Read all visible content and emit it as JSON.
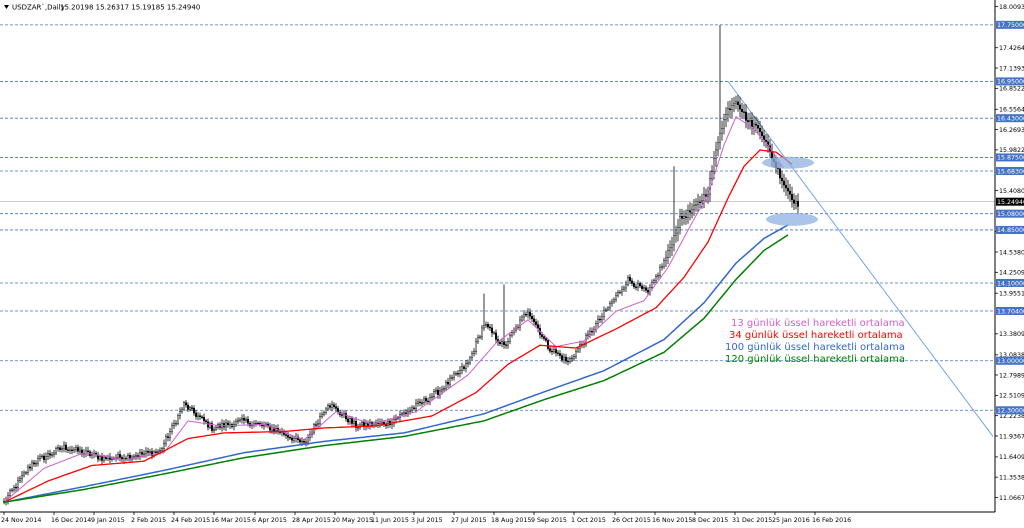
{
  "header": {
    "symbol": "USDZAR`,Daily",
    "ohlc": "15.20198 15.26317 15.19185 15.24940"
  },
  "chart_data": {
    "type": "candlestick",
    "ylim": [
      11.0,
      18.15
    ],
    "yticks": [
      "18.00930",
      "17.42640",
      "17.13930",
      "16.85220",
      "16.55640",
      "16.26930",
      "15.98220",
      "15.40800",
      "14.82510",
      "14.53800",
      "14.25090",
      "13.95510",
      "13.38090",
      "13.08380",
      "12.79890",
      "12.51090",
      "12.22380",
      "11.93670",
      "11.64090",
      "11.35380",
      "11.06670"
    ],
    "yticks_values": [
      18.0093,
      17.4264,
      17.1393,
      16.8522,
      16.5564,
      16.2693,
      15.9822,
      15.408,
      14.8251,
      14.538,
      14.2509,
      13.9551,
      13.3809,
      13.0838,
      12.7989,
      12.5109,
      12.2238,
      11.9367,
      11.6409,
      11.3538,
      11.0667
    ],
    "xticks": [
      "24 Nov 2014",
      "16 Dec 2014",
      "9 Jan 2015",
      "2 Feb 2015",
      "24 Feb 2015",
      "16 Mar 2015",
      "6 Apr 2015",
      "28 Apr 2015",
      "20 May 2015",
      "11 Jun 2015",
      "3 Jul 2015",
      "27 Jul 2015",
      "18 Aug 2015",
      "9 Sep 2015",
      "1 Oct 2015",
      "26 Oct 2015",
      "16 Nov 2015",
      "8 Dec 2015",
      "31 Dec 2015",
      "25 Jan 2016",
      "16 Feb 2016"
    ],
    "levels": [
      {
        "value": 17.75,
        "label": "17.75000"
      },
      {
        "value": 16.95,
        "label": "16.95000"
      },
      {
        "value": 16.43,
        "label": "16.43000"
      },
      {
        "value": 15.875,
        "label": "15.87500"
      },
      {
        "value": 15.683,
        "label": "15.68300"
      },
      {
        "value": 15.08,
        "label": "15.08000"
      },
      {
        "value": 14.85,
        "label": "14.85000"
      },
      {
        "value": 14.1,
        "label": "14.10000"
      },
      {
        "value": 13.704,
        "label": "13.70400"
      },
      {
        "value": 13.0,
        "label": "13.00000"
      },
      {
        "value": 12.3,
        "label": "12.30000"
      }
    ],
    "current_price": {
      "value": 15.2494,
      "label": "15.24940"
    },
    "anchors": {
      "close": [
        [
          0,
          11.0
        ],
        [
          14,
          11.55
        ],
        [
          30,
          11.78
        ],
        [
          50,
          11.62
        ],
        [
          62,
          11.65
        ],
        [
          78,
          11.72
        ],
        [
          90,
          12.38
        ],
        [
          104,
          12.05
        ],
        [
          120,
          12.15
        ],
        [
          136,
          12.03
        ],
        [
          150,
          11.82
        ],
        [
          162,
          12.4
        ],
        [
          176,
          12.08
        ],
        [
          192,
          12.12
        ],
        [
          206,
          12.36
        ],
        [
          218,
          12.58
        ],
        [
          232,
          12.96
        ],
        [
          240,
          13.52
        ],
        [
          250,
          13.2
        ],
        [
          262,
          13.72
        ],
        [
          272,
          13.2
        ],
        [
          282,
          12.98
        ],
        [
          292,
          13.35
        ],
        [
          302,
          13.75
        ],
        [
          312,
          14.15
        ],
        [
          322,
          13.95
        ],
        [
          332,
          14.52
        ],
        [
          338,
          15.0
        ],
        [
          345,
          15.15
        ],
        [
          352,
          15.4
        ],
        [
          358,
          16.25
        ],
        [
          362,
          16.55
        ],
        [
          366,
          16.7
        ],
        [
          372,
          16.38
        ],
        [
          378,
          16.28
        ],
        [
          384,
          15.88
        ],
        [
          390,
          15.5
        ],
        [
          396,
          15.22
        ]
      ],
      "ema13": [
        [
          0,
          11.0
        ],
        [
          20,
          11.48
        ],
        [
          40,
          11.7
        ],
        [
          60,
          11.6
        ],
        [
          80,
          11.7
        ],
        [
          92,
          12.15
        ],
        [
          108,
          12.08
        ],
        [
          130,
          12.1
        ],
        [
          150,
          11.88
        ],
        [
          166,
          12.28
        ],
        [
          184,
          12.1
        ],
        [
          206,
          12.28
        ],
        [
          232,
          12.8
        ],
        [
          246,
          13.25
        ],
        [
          262,
          13.58
        ],
        [
          276,
          13.2
        ],
        [
          290,
          13.28
        ],
        [
          306,
          13.7
        ],
        [
          320,
          13.85
        ],
        [
          332,
          14.32
        ],
        [
          344,
          14.95
        ],
        [
          352,
          15.35
        ],
        [
          360,
          16.05
        ],
        [
          366,
          16.45
        ],
        [
          374,
          16.3
        ],
        [
          382,
          16.05
        ],
        [
          390,
          15.72
        ]
      ],
      "ema34": [
        [
          0,
          11.0
        ],
        [
          22,
          11.3
        ],
        [
          44,
          11.52
        ],
        [
          70,
          11.58
        ],
        [
          92,
          11.9
        ],
        [
          110,
          11.98
        ],
        [
          140,
          12.0
        ],
        [
          160,
          12.05
        ],
        [
          186,
          12.08
        ],
        [
          214,
          12.22
        ],
        [
          236,
          12.55
        ],
        [
          252,
          12.95
        ],
        [
          268,
          13.22
        ],
        [
          286,
          13.18
        ],
        [
          306,
          13.45
        ],
        [
          326,
          13.75
        ],
        [
          340,
          14.18
        ],
        [
          352,
          14.68
        ],
        [
          362,
          15.3
        ],
        [
          370,
          15.75
        ],
        [
          378,
          15.98
        ],
        [
          386,
          15.95
        ],
        [
          394,
          15.78
        ]
      ],
      "ema100": [
        [
          0,
          11.0
        ],
        [
          40,
          11.22
        ],
        [
          80,
          11.45
        ],
        [
          120,
          11.7
        ],
        [
          160,
          11.86
        ],
        [
          200,
          11.98
        ],
        [
          240,
          12.25
        ],
        [
          270,
          12.56
        ],
        [
          300,
          12.86
        ],
        [
          330,
          13.3
        ],
        [
          350,
          13.82
        ],
        [
          366,
          14.38
        ],
        [
          380,
          14.73
        ],
        [
          392,
          14.92
        ]
      ],
      "ema120": [
        [
          0,
          11.0
        ],
        [
          40,
          11.18
        ],
        [
          80,
          11.4
        ],
        [
          120,
          11.63
        ],
        [
          160,
          11.8
        ],
        [
          200,
          11.93
        ],
        [
          240,
          12.15
        ],
        [
          270,
          12.45
        ],
        [
          300,
          12.72
        ],
        [
          330,
          13.12
        ],
        [
          350,
          13.6
        ],
        [
          366,
          14.15
        ],
        [
          380,
          14.56
        ],
        [
          392,
          14.78
        ]
      ]
    },
    "spikes": [
      {
        "i": 358,
        "high": 17.75
      },
      {
        "i": 335,
        "high": 15.75
      },
      {
        "i": 240,
        "high": 13.95
      },
      {
        "i": 250,
        "high": 14.08
      }
    ],
    "series": [
      {
        "name": "13 günlük üssel hareketli ortalama",
        "color": "#d060d0"
      },
      {
        "name": "34 günlük üssel hareketli ortalama",
        "color": "#ff0000"
      },
      {
        "name": "100 günlük üssel hareketli ortalama",
        "color": "#3366cc"
      },
      {
        "name": "120 günlük üssel hareketli ortalama",
        "color": "#008000"
      }
    ],
    "colors": {
      "candle": "#000000",
      "level_line": "#4472c4",
      "label_bg": "#4472c4",
      "price_bg": "#000000",
      "trendline": "#6b9be6",
      "ellipse": "#8fb0e0"
    }
  }
}
